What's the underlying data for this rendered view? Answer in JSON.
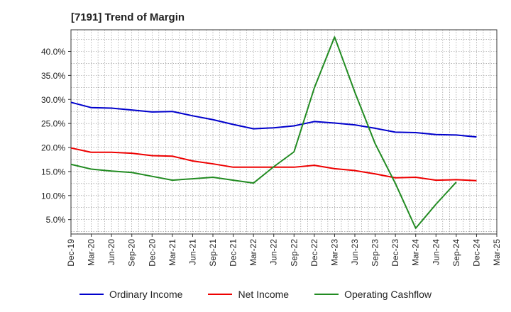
{
  "chart_data": {
    "type": "line",
    "title": "[7191]  Trend of Margin",
    "xlabel": "",
    "ylabel": "",
    "categories": [
      "Dec-19",
      "Mar-20",
      "Jun-20",
      "Sep-20",
      "Dec-20",
      "Mar-21",
      "Jun-21",
      "Sep-21",
      "Dec-21",
      "Mar-22",
      "Jun-22",
      "Sep-22",
      "Dec-22",
      "Mar-23",
      "Jun-23",
      "Sep-23",
      "Dec-23",
      "Mar-24",
      "Jun-24",
      "Sep-24",
      "Dec-24",
      "Mar-25"
    ],
    "ylim": [
      2.0,
      44.5
    ],
    "yticks": [
      5,
      10,
      15,
      20,
      25,
      30,
      35,
      40
    ],
    "ytick_labels": [
      "5.0%",
      "10.0%",
      "15.0%",
      "20.0%",
      "25.0%",
      "30.0%",
      "35.0%",
      "40.0%"
    ],
    "grid": true,
    "legend_position": "bottom",
    "series": [
      {
        "name": "Ordinary Income",
        "color": "#0000cc",
        "values": [
          29.4,
          28.3,
          28.2,
          27.8,
          27.4,
          27.5,
          26.6,
          25.8,
          24.8,
          23.9,
          24.1,
          24.5,
          25.4,
          25.1,
          24.7,
          24.0,
          23.2,
          23.1,
          22.7,
          22.6,
          22.2,
          null
        ]
      },
      {
        "name": "Net Income",
        "color": "#ee0000",
        "values": [
          19.9,
          19.0,
          19.0,
          18.8,
          18.3,
          18.2,
          17.2,
          16.6,
          15.9,
          15.9,
          15.9,
          15.9,
          16.3,
          15.6,
          15.2,
          14.5,
          13.7,
          13.8,
          13.2,
          13.3,
          13.1,
          null
        ]
      },
      {
        "name": "Operating Cashflow",
        "color": "#228b22",
        "values": [
          16.5,
          15.5,
          15.1,
          14.8,
          14.0,
          13.2,
          13.5,
          13.8,
          13.2,
          12.6,
          16.0,
          19.1,
          32.4,
          43.0,
          31.5,
          20.8,
          12.5,
          3.2,
          8.2,
          12.8,
          null,
          null
        ]
      }
    ]
  }
}
